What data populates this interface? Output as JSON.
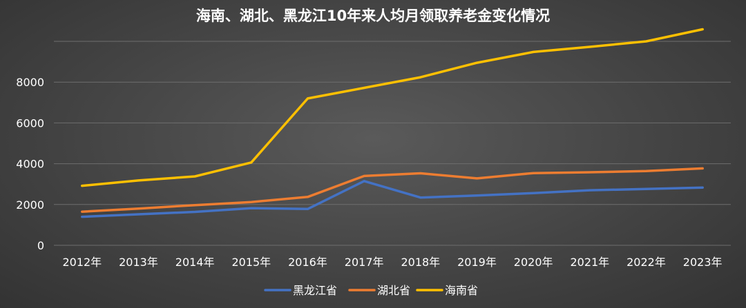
{
  "chart_data": {
    "type": "line",
    "title": "海南、湖北、黑龙江10年来人均月领取养老金变化情况",
    "xlabel": "",
    "ylabel": "",
    "categories": [
      "2012年",
      "2013年",
      "2014年",
      "2015年",
      "2016年",
      "2017年",
      "2018年",
      "2019年",
      "2020年",
      "2021年",
      "2022年",
      "2023年"
    ],
    "ylim": [
      0,
      10000
    ],
    "yticks": [
      0,
      2000,
      4000,
      6000,
      8000
    ],
    "grid": true,
    "legend_position": "bottom",
    "series": [
      {
        "name": "黑龙江省",
        "color": "#4472c4",
        "values": [
          1400,
          1520,
          1640,
          1820,
          1780,
          3150,
          2340,
          2440,
          2560,
          2700,
          2760,
          2830
        ]
      },
      {
        "name": "湖北省",
        "color": "#ed7d31",
        "values": [
          1650,
          1800,
          1970,
          2120,
          2370,
          3400,
          3530,
          3280,
          3540,
          3580,
          3640,
          3770
        ]
      },
      {
        "name": "海南省",
        "color": "#ffc000",
        "values": [
          2920,
          3180,
          3380,
          4060,
          7200,
          7720,
          8240,
          8950,
          9480,
          9730,
          10000,
          10590
        ]
      }
    ]
  }
}
